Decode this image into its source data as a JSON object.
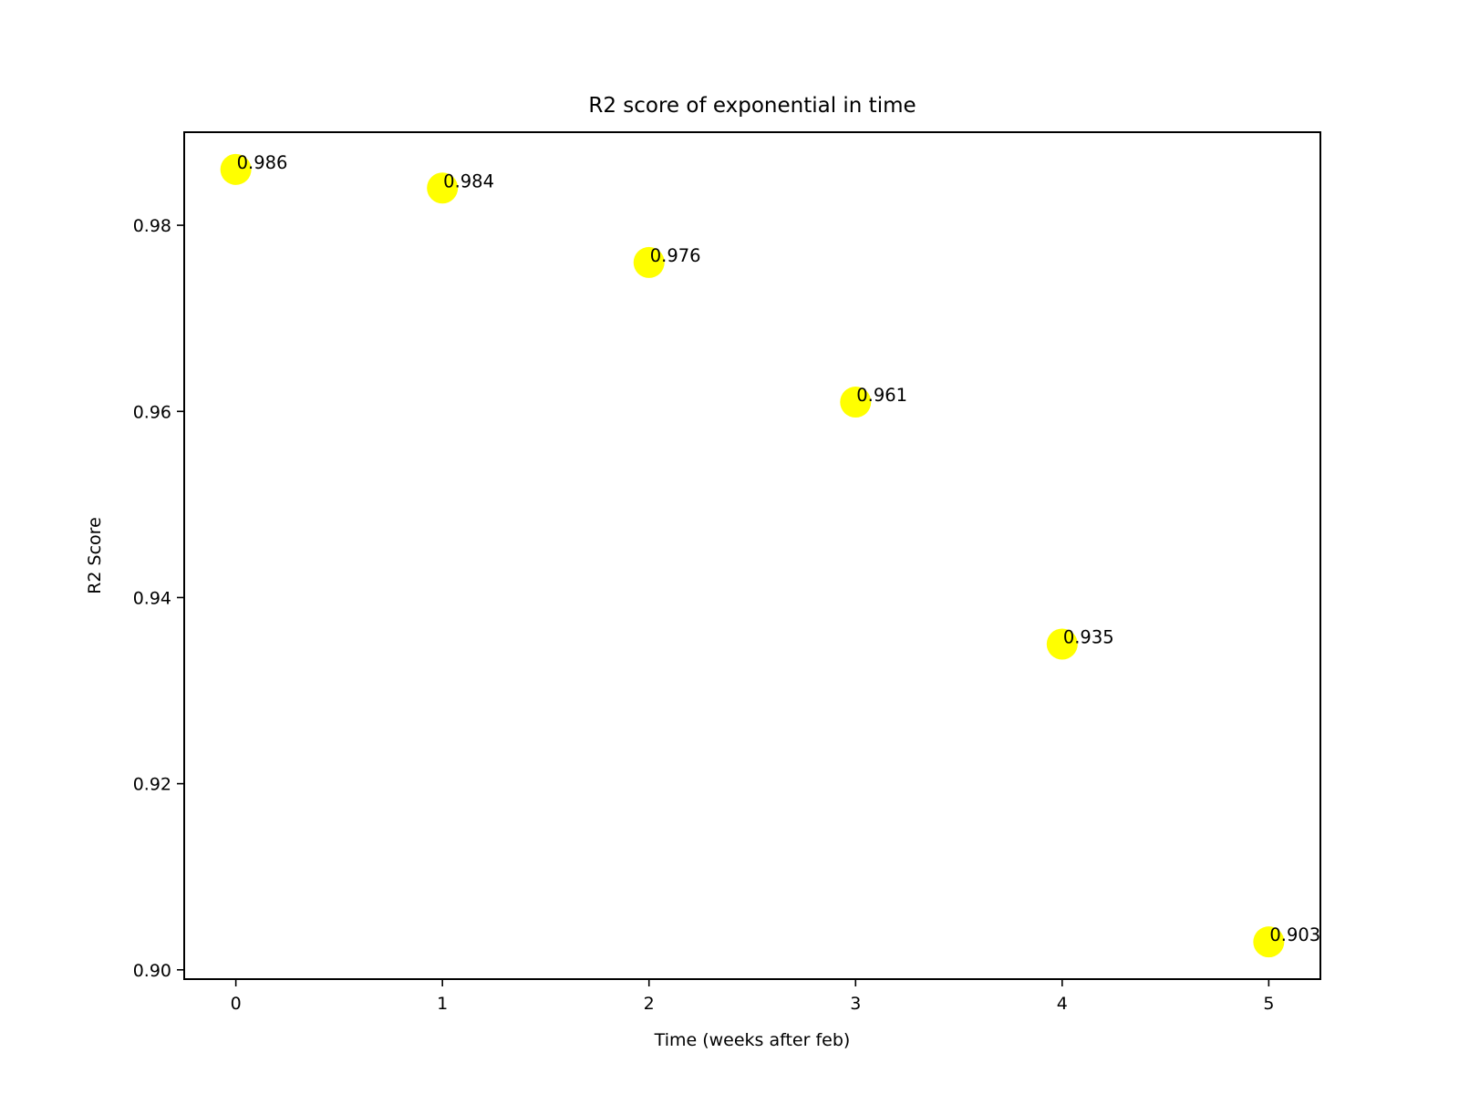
{
  "chart_data": {
    "type": "scatter",
    "title": "R2 score of exponential in time",
    "xlabel": "Time (weeks after feb)",
    "ylabel": "R2 Score",
    "x": [
      0,
      1,
      2,
      3,
      4,
      5
    ],
    "y": [
      0.986,
      0.984,
      0.976,
      0.961,
      0.935,
      0.903
    ],
    "point_labels": [
      "0.986",
      "0.984",
      "0.976",
      "0.961",
      "0.935",
      "0.903"
    ],
    "xlim": [
      -0.25,
      5.25
    ],
    "ylim": [
      0.899,
      0.99
    ],
    "xticks": [
      0,
      1,
      2,
      3,
      4,
      5
    ],
    "xtick_labels": [
      "0",
      "1",
      "2",
      "3",
      "4",
      "5"
    ],
    "yticks": [
      0.9,
      0.92,
      0.94,
      0.96,
      0.98
    ],
    "ytick_labels": [
      "0.90",
      "0.92",
      "0.94",
      "0.96",
      "0.98"
    ],
    "marker_color": "#ffff00",
    "grid": false,
    "legend": "none"
  }
}
